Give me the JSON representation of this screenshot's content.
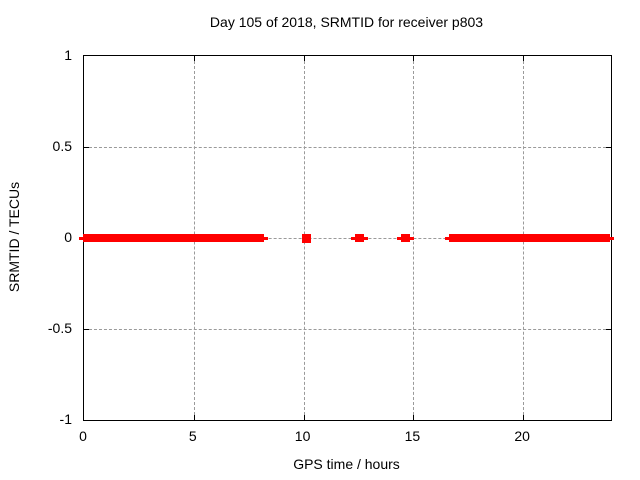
{
  "chart_data": {
    "type": "scatter",
    "title": "Day 105 of 2018, SRMTID for receiver p803",
    "xlabel": "GPS time / hours",
    "ylabel": "SRMTID / TECUs",
    "xlim": [
      0,
      24
    ],
    "ylim": [
      -1,
      1
    ],
    "xtick_labels": [
      "0",
      "5",
      "10",
      "15",
      "20"
    ],
    "xticks": [
      0,
      5,
      10,
      15,
      20
    ],
    "ytick_labels": [
      "1",
      "0.5",
      "0",
      "-0.5",
      "-1"
    ],
    "yticks": [
      1,
      0.5,
      0,
      -0.5,
      -1
    ],
    "grid": true,
    "grid_xticks": [
      5,
      10,
      15,
      20
    ],
    "grid_yticks": [
      0.5,
      0,
      -0.5
    ],
    "legend": "none",
    "series": [
      {
        "name": "SRMTID",
        "marker": "plus",
        "y_value": 0,
        "segments_hours": [
          [
            0,
            8.15
          ],
          [
            12.4,
            12.7
          ],
          [
            14.5,
            14.8
          ],
          [
            16.65,
            23.9
          ]
        ],
        "isolated_points_hours": [
          10.1
        ]
      }
    ],
    "colors": {
      "data": "#ff0000",
      "grid": "#9a9a9a",
      "border": "#000000",
      "background": "#ffffff",
      "text": "#000000"
    }
  }
}
